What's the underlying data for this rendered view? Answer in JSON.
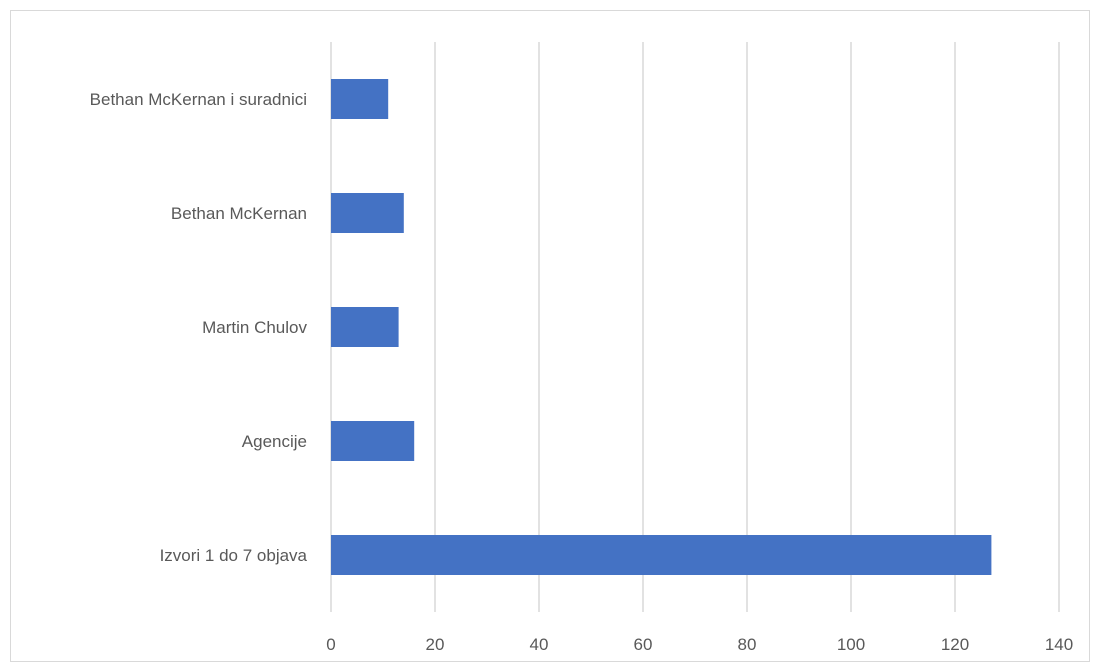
{
  "chart_data": {
    "type": "bar",
    "orientation": "horizontal",
    "title": "",
    "xlabel": "",
    "ylabel": "",
    "categories": [
      "Bethan McKernan i suradnici",
      "Bethan McKernan",
      "Martin Chulov",
      "Agencije",
      "Izvori 1 do 7 objava"
    ],
    "values": [
      11,
      14,
      13,
      16,
      127
    ],
    "xlim": [
      0,
      140
    ],
    "xticks": [
      0,
      20,
      40,
      60,
      80,
      100,
      120,
      140
    ],
    "grid": true,
    "legend": "none",
    "bar_color": "#4472c4",
    "grid_color": "#d9d9d9"
  }
}
